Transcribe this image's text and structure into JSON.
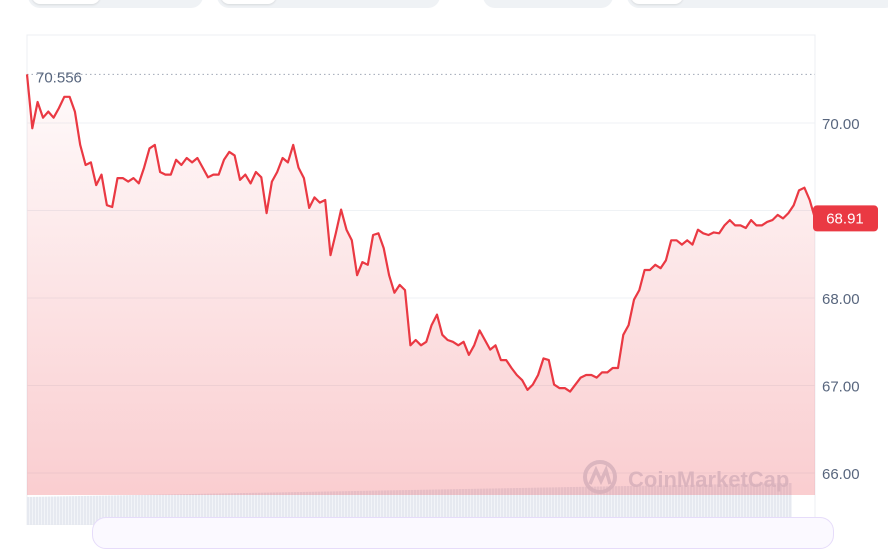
{
  "chart_data": {
    "type": "area",
    "title": "",
    "xlabel": "",
    "ylabel": "",
    "ylim": [
      65.5,
      71.0
    ],
    "y_ticks": [
      "70.00",
      "68.00",
      "67.00",
      "66.00"
    ],
    "y_tick_values": [
      70,
      68,
      67,
      66
    ],
    "grid": true,
    "line_color": "#ea3943",
    "fill_color": "#ea3943",
    "open_reference": {
      "label": "70.556",
      "value": 70.556
    },
    "current_price": {
      "label": "68.91",
      "value": 68.91
    },
    "watermark": "CoinMarketCap",
    "values": [
      70.556,
      69.94,
      70.24,
      70.06,
      70.13,
      70.06,
      70.17,
      70.3,
      70.3,
      70.13,
      69.75,
      69.52,
      69.55,
      69.29,
      69.41,
      69.06,
      69.04,
      69.37,
      69.37,
      69.33,
      69.37,
      69.31,
      69.49,
      69.71,
      69.75,
      69.44,
      69.41,
      69.41,
      69.58,
      69.52,
      69.6,
      69.55,
      69.6,
      69.49,
      69.38,
      69.41,
      69.41,
      69.58,
      69.67,
      69.63,
      69.35,
      69.41,
      69.31,
      69.44,
      69.38,
      68.97,
      69.33,
      69.44,
      69.6,
      69.55,
      69.75,
      69.49,
      69.37,
      69.03,
      69.15,
      69.09,
      69.12,
      68.49,
      68.74,
      69.01,
      68.78,
      68.66,
      68.26,
      68.41,
      68.38,
      68.72,
      68.74,
      68.57,
      68.26,
      68.06,
      68.15,
      68.09,
      67.46,
      67.52,
      67.46,
      67.5,
      67.69,
      67.81,
      67.58,
      67.52,
      67.5,
      67.46,
      67.5,
      67.35,
      67.46,
      67.63,
      67.52,
      67.41,
      67.46,
      67.29,
      67.29,
      67.2,
      67.12,
      67.06,
      66.95,
      67.01,
      67.12,
      67.31,
      67.29,
      67.01,
      66.97,
      66.97,
      66.93,
      67.01,
      67.09,
      67.12,
      67.12,
      67.09,
      67.15,
      67.15,
      67.2,
      67.2,
      67.58,
      67.69,
      67.98,
      68.09,
      68.32,
      68.32,
      68.38,
      68.34,
      68.43,
      68.66,
      68.66,
      68.61,
      68.66,
      68.61,
      68.78,
      68.74,
      68.72,
      68.75,
      68.74,
      68.83,
      68.89,
      68.83,
      68.83,
      68.8,
      68.89,
      68.83,
      68.83,
      68.87,
      68.89,
      68.95,
      68.91,
      68.97,
      69.06,
      69.23,
      69.26,
      69.12,
      68.91
    ]
  }
}
